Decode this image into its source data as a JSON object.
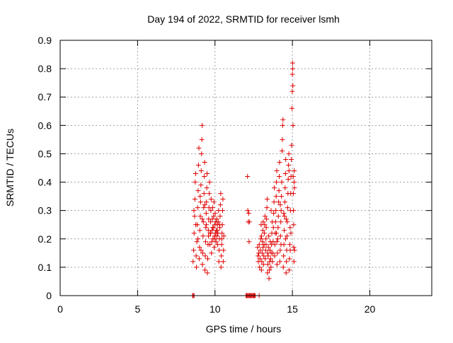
{
  "chart_data": {
    "type": "scatter",
    "title": "Day 194 of 2022, SRMTID for receiver lsmh",
    "xlabel": "GPS time / hours",
    "ylabel": "SRMTID / TECUs",
    "xlim": [
      0,
      24
    ],
    "ylim": [
      0,
      0.9
    ],
    "x_ticks": [
      0,
      5,
      10,
      15,
      20
    ],
    "y_ticks": [
      0,
      0.1,
      0.2,
      0.3,
      0.4,
      0.5,
      0.6,
      0.7,
      0.8,
      0.9
    ],
    "grid": true,
    "marker": "plus",
    "color": "#e00000",
    "series": [
      {
        "values_xy": [
          [
            8.58,
            0.12
          ],
          [
            8.62,
            0.16
          ],
          [
            8.65,
            0.22
          ],
          [
            8.68,
            0.28
          ],
          [
            8.7,
            0.34
          ],
          [
            8.72,
            0.4
          ],
          [
            8.75,
            0.43
          ],
          [
            8.78,
            0.14
          ],
          [
            8.8,
            0.1
          ],
          [
            8.83,
            0.19
          ],
          [
            8.86,
            0.25
          ],
          [
            8.88,
            0.31
          ],
          [
            8.91,
            0.37
          ],
          [
            8.93,
            0.46
          ],
          [
            8.96,
            0.52
          ],
          [
            8.98,
            0.13
          ],
          [
            9.0,
            0.17
          ],
          [
            9.02,
            0.23
          ],
          [
            9.05,
            0.28
          ],
          [
            9.07,
            0.33
          ],
          [
            9.09,
            0.39
          ],
          [
            9.11,
            0.44
          ],
          [
            9.13,
            0.5
          ],
          [
            9.15,
            0.55
          ],
          [
            9.17,
            0.6
          ],
          [
            9.19,
            0.11
          ],
          [
            9.21,
            0.15
          ],
          [
            9.23,
            0.21
          ],
          [
            9.25,
            0.26
          ],
          [
            9.27,
            0.31
          ],
          [
            9.29,
            0.36
          ],
          [
            9.31,
            0.42
          ],
          [
            9.33,
            0.47
          ],
          [
            9.35,
            0.09
          ],
          [
            9.37,
            0.14
          ],
          [
            9.39,
            0.19
          ],
          [
            9.41,
            0.24
          ],
          [
            9.43,
            0.29
          ],
          [
            9.45,
            0.33
          ],
          [
            9.47,
            0.38
          ],
          [
            9.49,
            0.43
          ],
          [
            9.51,
            0.08
          ],
          [
            9.53,
            0.13
          ],
          [
            9.55,
            0.18
          ],
          [
            9.57,
            0.23
          ],
          [
            9.59,
            0.27
          ],
          [
            9.61,
            0.31
          ],
          [
            9.63,
            0.36
          ],
          [
            9.65,
            0.4
          ],
          [
            9.67,
            0.18
          ],
          [
            9.69,
            0.22
          ],
          [
            9.71,
            0.26
          ],
          [
            9.73,
            0.3
          ],
          [
            9.75,
            0.34
          ],
          [
            9.77,
            0.15
          ],
          [
            9.79,
            0.19
          ],
          [
            9.81,
            0.23
          ],
          [
            9.83,
            0.27
          ],
          [
            9.85,
            0.31
          ],
          [
            9.87,
            0.2
          ],
          [
            9.89,
            0.24
          ],
          [
            9.91,
            0.28
          ],
          [
            9.93,
            0.33
          ],
          [
            9.95,
            0.17
          ],
          [
            9.97,
            0.21
          ],
          [
            9.99,
            0.25
          ],
          [
            10.01,
            0.29
          ],
          [
            10.03,
            0.22
          ],
          [
            10.05,
            0.26
          ],
          [
            10.07,
            0.19
          ],
          [
            10.09,
            0.23
          ],
          [
            10.11,
            0.27
          ],
          [
            10.13,
            0.21
          ],
          [
            10.15,
            0.25
          ],
          [
            10.17,
            0.18
          ],
          [
            10.19,
            0.22
          ],
          [
            10.21,
            0.26
          ],
          [
            10.23,
            0.3
          ],
          [
            10.25,
            0.12
          ],
          [
            10.27,
            0.16
          ],
          [
            10.29,
            0.2
          ],
          [
            10.31,
            0.24
          ],
          [
            10.33,
            0.28
          ],
          [
            10.35,
            0.32
          ],
          [
            10.37,
            0.36
          ],
          [
            10.39,
            0.1
          ],
          [
            10.41,
            0.14
          ],
          [
            10.43,
            0.18
          ],
          [
            10.45,
            0.22
          ],
          [
            10.47,
            0.25
          ],
          [
            10.49,
            0.3
          ],
          [
            10.51,
            0.34
          ],
          [
            10.53,
            0.12
          ],
          [
            10.55,
            0.16
          ],
          [
            10.57,
            0.21
          ],
          [
            8.64,
            0.3
          ],
          [
            8.76,
            0.25
          ],
          [
            8.9,
            0.2
          ],
          [
            9.04,
            0.35
          ],
          [
            9.18,
            0.27
          ],
          [
            9.34,
            0.32
          ],
          [
            9.44,
            0.25
          ],
          [
            9.58,
            0.21
          ],
          [
            9.72,
            0.22
          ],
          [
            9.86,
            0.24
          ],
          [
            10.0,
            0.2
          ],
          [
            10.14,
            0.23
          ],
          [
            10.3,
            0.25
          ],
          [
            10.44,
            0.2
          ],
          [
            9.1,
            0.16
          ],
          [
            12.1,
            0.42
          ],
          [
            12.12,
            0.3
          ],
          [
            12.15,
            0.26
          ],
          [
            12.18,
            0.29
          ],
          [
            12.2,
            0.19
          ],
          [
            12.22,
            0.26
          ],
          [
            12.75,
            0.17
          ],
          [
            12.78,
            0.14
          ],
          [
            12.8,
            0.12
          ],
          [
            12.83,
            0.15
          ],
          [
            12.86,
            0.18
          ],
          [
            12.88,
            0.1
          ],
          [
            12.91,
            0.13
          ],
          [
            12.93,
            0.16
          ],
          [
            12.96,
            0.2
          ],
          [
            12.98,
            0.25
          ],
          [
            13.0,
            0.09
          ],
          [
            13.02,
            0.12
          ],
          [
            13.05,
            0.15
          ],
          [
            13.07,
            0.19
          ],
          [
            13.09,
            0.23
          ],
          [
            13.11,
            0.26
          ],
          [
            13.13,
            0.11
          ],
          [
            13.15,
            0.14
          ],
          [
            13.17,
            0.18
          ],
          [
            13.19,
            0.22
          ],
          [
            13.21,
            0.25
          ],
          [
            13.23,
            0.28
          ],
          [
            13.25,
            0.13
          ],
          [
            13.27,
            0.16
          ],
          [
            13.29,
            0.2
          ],
          [
            13.31,
            0.24
          ],
          [
            13.33,
            0.27
          ],
          [
            13.35,
            0.31
          ],
          [
            13.37,
            0.34
          ],
          [
            13.39,
            0.08
          ],
          [
            13.41,
            0.11
          ],
          [
            13.43,
            0.14
          ],
          [
            13.45,
            0.17
          ],
          [
            13.47,
            0.21
          ],
          [
            13.49,
            0.06
          ],
          [
            13.51,
            0.09
          ],
          [
            13.53,
            0.12
          ],
          [
            13.55,
            0.16
          ],
          [
            13.57,
            0.19
          ],
          [
            13.59,
            0.13
          ],
          [
            13.61,
            0.1
          ],
          [
            13.63,
            0.15
          ],
          [
            13.65,
            0.18
          ],
          [
            13.67,
            0.22
          ],
          [
            13.69,
            0.26
          ],
          [
            13.71,
            0.12
          ],
          [
            13.73,
            0.15
          ],
          [
            13.75,
            0.19
          ],
          [
            13.77,
            0.24
          ],
          [
            13.79,
            0.29
          ],
          [
            13.81,
            0.33
          ],
          [
            13.83,
            0.38
          ],
          [
            13.85,
            0.14
          ],
          [
            13.87,
            0.18
          ],
          [
            13.89,
            0.22
          ],
          [
            13.91,
            0.26
          ],
          [
            13.93,
            0.3
          ],
          [
            13.95,
            0.35
          ],
          [
            13.97,
            0.4
          ],
          [
            13.99,
            0.44
          ],
          [
            14.01,
            0.11
          ],
          [
            14.03,
            0.15
          ],
          [
            14.05,
            0.2
          ],
          [
            14.07,
            0.24
          ],
          [
            14.09,
            0.28
          ],
          [
            14.11,
            0.33
          ],
          [
            14.13,
            0.37
          ],
          [
            14.15,
            0.42
          ],
          [
            14.17,
            0.47
          ],
          [
            14.19,
            0.12
          ],
          [
            14.21,
            0.16
          ],
          [
            14.23,
            0.21
          ],
          [
            14.25,
            0.26
          ],
          [
            14.27,
            0.3
          ],
          [
            14.29,
            0.35
          ],
          [
            14.31,
            0.4
          ],
          [
            14.33,
            0.51
          ],
          [
            14.35,
            0.55
          ],
          [
            14.37,
            0.6
          ],
          [
            14.39,
            0.62
          ],
          [
            14.41,
            0.1
          ],
          [
            14.43,
            0.14
          ],
          [
            14.45,
            0.18
          ],
          [
            14.47,
            0.23
          ],
          [
            14.49,
            0.28
          ],
          [
            14.51,
            0.33
          ],
          [
            14.53,
            0.38
          ],
          [
            14.55,
            0.43
          ],
          [
            14.57,
            0.48
          ],
          [
            14.59,
            0.08
          ],
          [
            14.61,
            0.12
          ],
          [
            14.63,
            0.16
          ],
          [
            14.65,
            0.21
          ],
          [
            14.67,
            0.26
          ],
          [
            14.69,
            0.31
          ],
          [
            14.71,
            0.36
          ],
          [
            14.73,
            0.41
          ],
          [
            14.75,
            0.46
          ],
          [
            14.77,
            0.5
          ],
          [
            14.79,
            0.09
          ],
          [
            14.81,
            0.13
          ],
          [
            14.83,
            0.18
          ],
          [
            14.85,
            0.24
          ],
          [
            14.87,
            0.3
          ],
          [
            14.89,
            0.36
          ],
          [
            14.91,
            0.42
          ],
          [
            14.93,
            0.48
          ],
          [
            14.95,
            0.53
          ],
          [
            14.97,
            0.66
          ],
          [
            14.99,
            0.72
          ],
          [
            15.0,
            0.78
          ],
          [
            15.01,
            0.82
          ],
          [
            15.02,
            0.8
          ],
          [
            15.03,
            0.74
          ],
          [
            15.04,
            0.6
          ],
          [
            15.05,
            0.42
          ],
          [
            15.06,
            0.36
          ],
          [
            15.07,
            0.3
          ],
          [
            15.08,
            0.25
          ],
          [
            15.09,
            0.17
          ],
          [
            15.1,
            0.12
          ],
          [
            15.11,
            0.4
          ],
          [
            15.12,
            0.44
          ],
          [
            15.13,
            0.38
          ],
          [
            15.14,
            0.16
          ],
          [
            13.0,
            0.21
          ],
          [
            13.3,
            0.18
          ],
          [
            13.62,
            0.3
          ],
          [
            13.96,
            0.22
          ],
          [
            14.26,
            0.18
          ],
          [
            14.56,
            0.2
          ],
          [
            14.86,
            0.16
          ],
          [
            14.22,
            0.32
          ],
          [
            14.44,
            0.29
          ],
          [
            14.78,
            0.44
          ],
          [
            13.1,
            0.17
          ],
          [
            13.4,
            0.15
          ],
          [
            14.0,
            0.19
          ],
          [
            14.6,
            0.27
          ],
          [
            14.9,
            0.22
          ]
        ]
      },
      {
        "values_xy": [
          [
            8.55,
            0
          ],
          [
            8.6,
            0
          ],
          [
            8.65,
            0
          ],
          [
            12.0,
            0
          ],
          [
            12.05,
            0
          ],
          [
            12.1,
            0
          ],
          [
            12.15,
            0
          ],
          [
            12.2,
            0
          ],
          [
            12.25,
            0
          ],
          [
            12.3,
            0
          ],
          [
            12.35,
            0
          ],
          [
            12.4,
            0
          ],
          [
            12.45,
            0
          ],
          [
            12.5,
            0
          ],
          [
            12.55,
            0
          ],
          [
            12.6,
            0
          ],
          [
            12.85,
            0
          ]
        ]
      }
    ]
  }
}
